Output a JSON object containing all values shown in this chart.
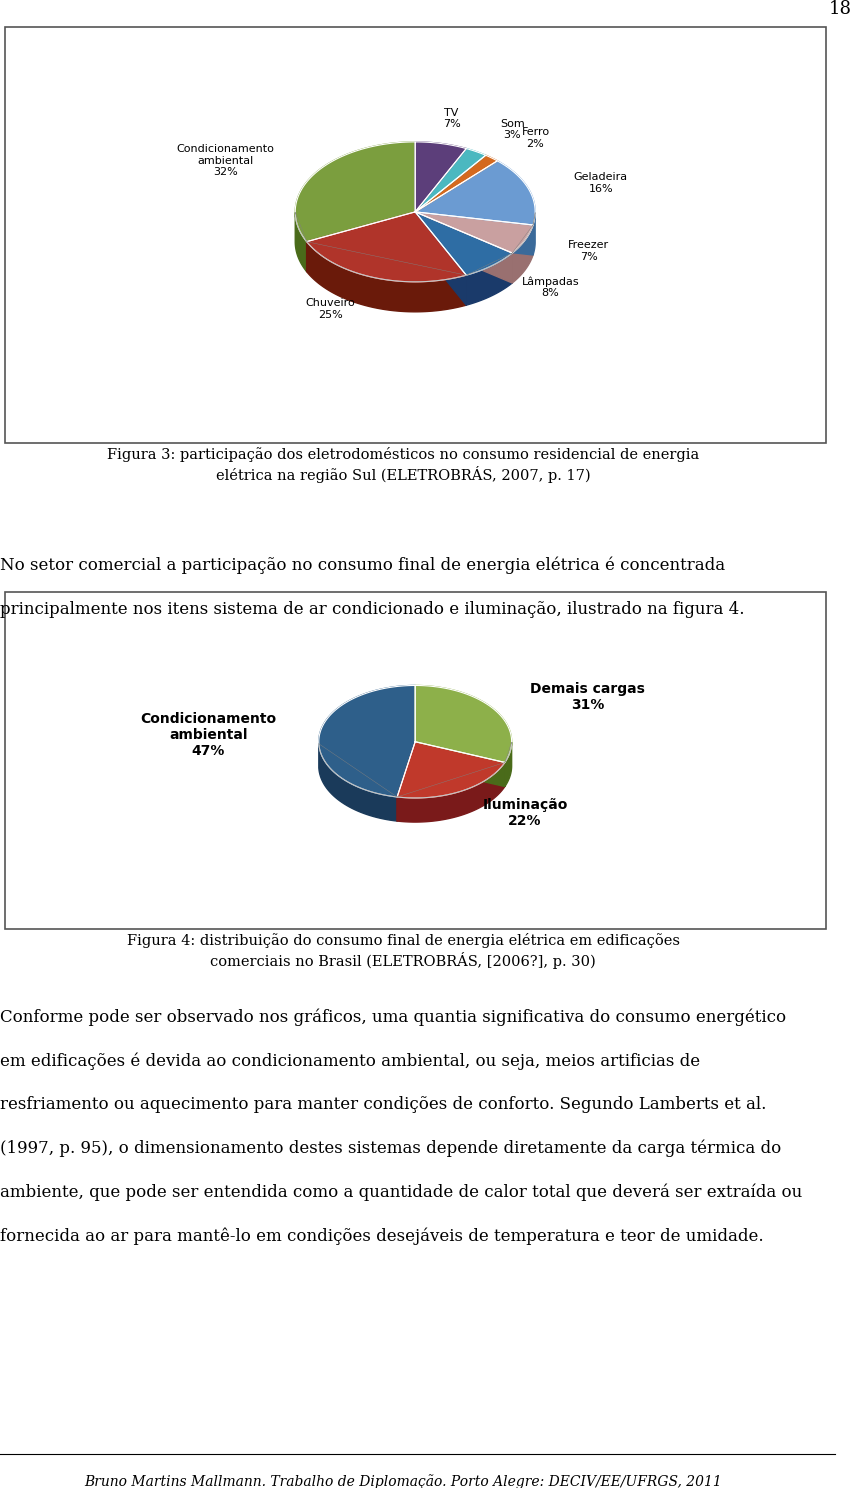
{
  "page_number": "18",
  "chart1": {
    "title": "Figura 3: participação dos eletrodomésticos no consumo residencial de energia\nelétrica na região Sul (ELETROBRÁS, 2007, p. 17)",
    "label_texts": [
      "Condicionamento\nambiental",
      "Chuveiro",
      "Lâmpadas",
      "Freezer",
      "Geladeira",
      "Ferro",
      "Som",
      "TV"
    ],
    "pct_texts": [
      "32%",
      "25%",
      "8%",
      "7%",
      "16%",
      "2%",
      "3%",
      "7%"
    ],
    "sizes": [
      32,
      25,
      8,
      7,
      16,
      2,
      3,
      7
    ],
    "colors": [
      "#7B9E3E",
      "#B0342A",
      "#2E6DA4",
      "#C9A0A0",
      "#6B9BD2",
      "#D4691E",
      "#4BB8C0",
      "#5C3E7A"
    ],
    "shadow_colors": [
      "#4a6b1a",
      "#6a1a0a",
      "#1a3a6a",
      "#997070",
      "#3a6a9a",
      "#9a3a0a",
      "#1a7a80",
      "#2a1a5a"
    ],
    "startangle": 90
  },
  "chart2": {
    "title": "Figura 4: distribuição do consumo final de energia elétrica em edificações\ncomerciais no Brasil (ELETROBRÁS, [2006?], p. 30)",
    "label_texts": [
      "Condicionamento\nambiental",
      "Iluminação",
      "Demais cargas"
    ],
    "pct_texts": [
      "47%",
      "22%",
      "31%"
    ],
    "sizes": [
      47,
      22,
      31
    ],
    "colors": [
      "#2E5F8A",
      "#C0392B",
      "#8DB04A"
    ],
    "shadow_colors": [
      "#1a3a5a",
      "#7a1a1a",
      "#4a6b1a"
    ],
    "startangle": 90
  },
  "text_body": "No setor comercial a participação no consumo final de energia elétrica é concentrada principalmente nos itens sistema de ar condicionado e iluminação, ilustrado na figura 4.",
  "text_body2_lines": [
    "Conforme pode ser observado nos gráficos, uma quantia significativa do consumo energético",
    "em edificações é devida ao condicionamento ambiental, ou seja, meios artificias de",
    "resfriamento ou aquecimento para manter condições de conforto. Segundo Lamberts et al.",
    "(1997, p. 95), o dimensionamento destes sistemas depende diretamente da carga térmica do",
    "ambiente, que pode ser entendida como a quantidade de calor total que deverá ser extraída ou",
    "fornecida ao ar para mantê-lo em condições desejáveis de temperatura e teor de umidade."
  ],
  "footer": "Bruno Martins Mallmann. Trabalho de Diplomação. Porto Alegre: DECIV/EE/UFRGS, 2011",
  "background_color": "#ffffff"
}
